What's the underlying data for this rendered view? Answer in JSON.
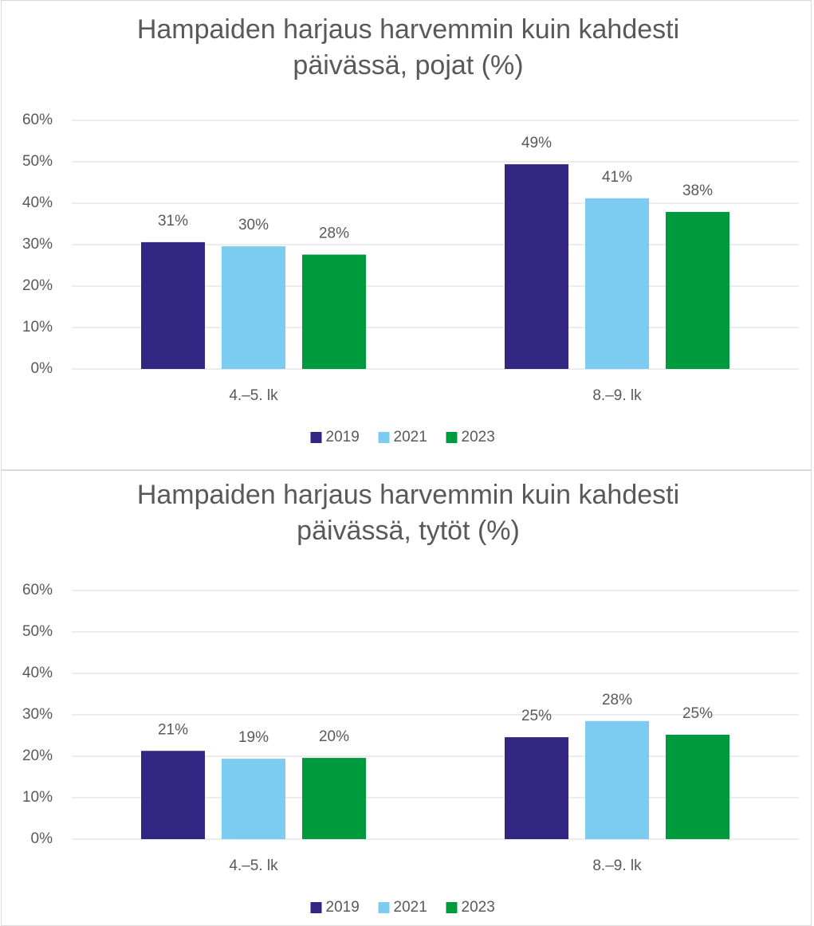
{
  "chart_data": [
    {
      "type": "bar",
      "title": "Hampaiden harjaus harvemmin kuin kahdesti päivässä, pojat (%)",
      "categories": [
        "4.–5. lk",
        "8.–9. lk"
      ],
      "series": [
        {
          "name": "2019",
          "color": "#312783",
          "values": [
            30.6,
            49.4
          ],
          "value_labels": [
            "31%",
            "49%"
          ]
        },
        {
          "name": "2021",
          "color": "#7ccbf0",
          "values": [
            29.6,
            41.2
          ],
          "value_labels": [
            "30%",
            "41%"
          ]
        },
        {
          "name": "2023",
          "color": "#009a3e",
          "values": [
            27.6,
            37.9
          ],
          "value_labels": [
            "28%",
            "38%"
          ]
        }
      ],
      "ylim": [
        0,
        60
      ],
      "yticks": [
        {
          "value": 0,
          "label": "0%"
        },
        {
          "value": 10,
          "label": "10%"
        },
        {
          "value": 20,
          "label": "20%"
        },
        {
          "value": 30,
          "label": "30%"
        },
        {
          "value": 40,
          "label": "40%"
        },
        {
          "value": 50,
          "label": "50%"
        },
        {
          "value": 60,
          "label": "60%"
        }
      ],
      "grid": true,
      "legend": "bottom"
    },
    {
      "type": "bar",
      "title": "Hampaiden harjaus harvemmin kuin kahdesti päivässä, tytöt (%)",
      "categories": [
        "4.–5. lk",
        "8.–9. lk"
      ],
      "series": [
        {
          "name": "2019",
          "color": "#312783",
          "values": [
            21.3,
            24.6
          ],
          "value_labels": [
            "21%",
            "25%"
          ]
        },
        {
          "name": "2021",
          "color": "#7ccbf0",
          "values": [
            19.4,
            28.5
          ],
          "value_labels": [
            "19%",
            "28%"
          ]
        },
        {
          "name": "2023",
          "color": "#009a3e",
          "values": [
            19.6,
            25.2
          ],
          "value_labels": [
            "20%",
            "25%"
          ]
        }
      ],
      "ylim": [
        0,
        60
      ],
      "yticks": [
        {
          "value": 0,
          "label": "0%"
        },
        {
          "value": 10,
          "label": "10%"
        },
        {
          "value": 20,
          "label": "20%"
        },
        {
          "value": 30,
          "label": "30%"
        },
        {
          "value": 40,
          "label": "40%"
        },
        {
          "value": 50,
          "label": "50%"
        },
        {
          "value": 60,
          "label": "60%"
        }
      ],
      "grid": true,
      "legend": "bottom"
    }
  ]
}
